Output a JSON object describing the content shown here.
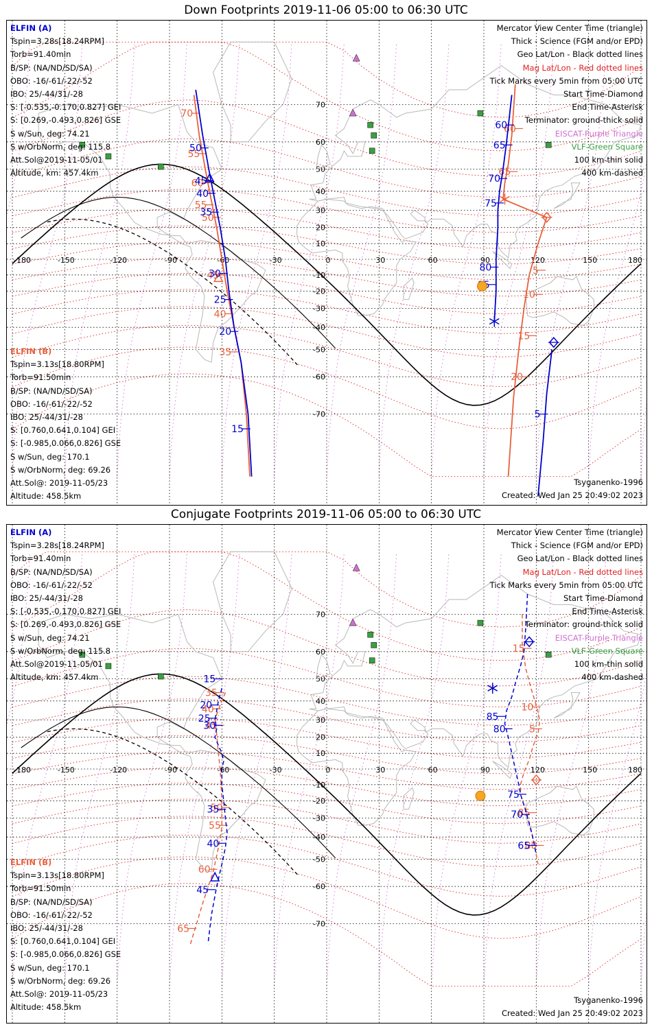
{
  "panels": [
    {
      "title": "Down Footprints 2019-11-06 05:00 to 06:30 UTC",
      "model": "Tsyganenko-1996",
      "created": "Created: Wed Jan 25 20:49:02 2023",
      "sat_a": {
        "name": "ELFIN (A)",
        "lines": [
          "Tspin=3.28s[18.24RPM]",
          "Torb=91.40min",
          "B/SP: (NA/ND/SD/SA)",
          "OBO: -16/-61/-22/-52",
          "IBO: 25/-44/31/-28",
          "S: [-0.535,-0.170,0.827] GEI",
          "S: [0.269,-0.493,0.826] GSE",
          "S w/Sun, deg: 74.21",
          "S w/OrbNorm, deg: 115.8",
          "Att.Sol@2019-11-05/01",
          "Altitude, km: 457.4km"
        ]
      },
      "sat_b": {
        "name": "ELFIN (B)",
        "lines": [
          "Tspin=3.13s[18.80RPM]",
          "Torb=91.50min",
          "B/SP: (NA/ND/SD/SA)",
          "OBO: -16/-61/-22/-52",
          "IBO: 25/-44/31/-28",
          "S: [0.760,0.641,0.104] GEI",
          "S: [-0.985,0.066,0.826] GSE",
          "S w/Sun, deg: 170.1",
          "S w/OrbNorm, deg: 69.26",
          "Att.Sol@: 2019-11-05/23",
          "Altitude: 458.5km"
        ]
      }
    },
    {
      "title": "Conjugate Footprints 2019-11-06 05:00 to 06:30 UTC",
      "model": "Tsyganenko-1996",
      "created": "Created: Wed Jan 25 20:49:02 2023",
      "sat_a": {
        "name": "ELFIN (A)",
        "lines": [
          "Tspin=3.28s[18.24RPM]",
          "Torb=91.40min",
          "B/SP: (NA/ND/SD/SA)",
          "OBO: -16/-61/-22/-52",
          "IBO: 25/-44/31/-28",
          "S: [-0.535,-0.170,0.827] GEI",
          "S: [0.269,-0.493,0.826] GSE",
          "S w/Sun, deg: 74.21",
          "S w/OrbNorm, deg: 115.8",
          "Att.Sol@2019-11-05/01",
          "Altitude, km: 457.4km"
        ]
      },
      "sat_b": {
        "name": "ELFIN (B)",
        "lines": [
          "Tspin=3.13s[18.80RPM]",
          "Torb=91.50min",
          "B/SP: (NA/ND/SD/SA)",
          "OBO: -16/-61/-22/-52",
          "IBO: 25/-44/31/-28",
          "S: [0.760,0.641,0.104] GEI",
          "S: [-0.985,0.066,0.826] GSE",
          "S w/Sun, deg: 170.1",
          "S w/OrbNorm, deg: 69.26",
          "Att.Sol@: 2019-11-05/23",
          "Altitude: 458.5km"
        ]
      }
    }
  ],
  "legend": [
    {
      "text": "Mercator View Center Time (triangle)",
      "color": "#000000"
    },
    {
      "text": "Thick - Science (FGM and/or EPD)",
      "color": "#000000"
    },
    {
      "text": "Geo Lat/Lon - Black dotted lines",
      "color": "#000000"
    },
    {
      "text": "Mag Lat/Lon - Red dotted lines",
      "color": "#e02020"
    },
    {
      "text": "Tick Marks every 5min from 05:00 UTC",
      "color": "#000000"
    },
    {
      "text": "Start Time-Diamond",
      "color": "#000000"
    },
    {
      "text": "End Time-Asterisk",
      "color": "#000000"
    },
    {
      "text": "Terminator: ground-thick solid",
      "color": "#000000"
    },
    {
      "text": "EISCAT-Purple Triangle",
      "color": "#d070d0"
    },
    {
      "text": "VLF-Green Square",
      "color": "#3aa040"
    },
    {
      "text": "100 km-thin solid",
      "color": "#000000"
    },
    {
      "text": "400 km-dashed",
      "color": "#000000"
    }
  ],
  "map": {
    "lon_ticks": [
      "-180",
      "-150",
      "-120",
      "-90",
      "-60",
      "-30",
      "0",
      "30",
      "60",
      "90",
      "120",
      "150",
      "180"
    ],
    "lat_ticks": [
      "70",
      "60",
      "50",
      "40",
      "30",
      "20",
      "10",
      "-10",
      "-20",
      "-30",
      "-40",
      "-50",
      "-60",
      "-70"
    ],
    "lon_values": [
      -180,
      -150,
      -120,
      -90,
      -60,
      -30,
      0,
      30,
      60,
      90,
      120,
      150,
      180
    ],
    "lat_values": [
      70,
      60,
      50,
      40,
      30,
      20,
      10,
      -10,
      -20,
      -30,
      -40,
      -50,
      -60,
      -70
    ]
  },
  "colors": {
    "elfin_a": "#0000cc",
    "elfin_b": "#e8603c",
    "mag_grid": "#e02020",
    "eiscat": "#d070d0",
    "vlf": "#3aa040",
    "sun": "#f5a623"
  },
  "down_tracks": {
    "a_west": {
      "points": [
        [
          -75,
          73
        ],
        [
          -71,
          62
        ],
        [
          -67,
          48
        ],
        [
          -64,
          35
        ],
        [
          -61,
          20
        ],
        [
          -58,
          0
        ],
        [
          -56,
          -20
        ],
        [
          -53,
          -40
        ],
        [
          -49,
          -55
        ],
        [
          -45,
          -70
        ],
        [
          -43,
          -80
        ]
      ],
      "ticks": [
        {
          "label": "50",
          "lon": -70,
          "lat": 58
        },
        {
          "label": "45",
          "lon": -67,
          "lat": 45
        },
        {
          "label": "40",
          "lon": -66,
          "lat": 39
        },
        {
          "label": "35",
          "lon": -64,
          "lat": 29
        },
        {
          "label": "30",
          "lon": -59,
          "lat": -9
        },
        {
          "label": "25",
          "lon": -56,
          "lat": -25
        },
        {
          "label": "20",
          "lon": -53,
          "lat": -42
        },
        {
          "label": "15",
          "lon": -46,
          "lat": -73
        }
      ],
      "triangle": {
        "lon": -67,
        "lat": 46
      }
    },
    "b_west": {
      "points": [
        [
          -76,
          72
        ],
        [
          -73,
          62
        ],
        [
          -69,
          48
        ],
        [
          -66,
          35
        ],
        [
          -63,
          20
        ],
        [
          -60,
          0
        ],
        [
          -57,
          -20
        ],
        [
          -53,
          -40
        ],
        [
          -49,
          -55
        ],
        [
          -46,
          -70
        ],
        [
          -44,
          -80
        ]
      ],
      "ticks": [
        {
          "label": "70",
          "lon": -75,
          "lat": 68
        },
        {
          "label": "55",
          "lon": -71,
          "lat": 56
        },
        {
          "label": "60",
          "lon": -69,
          "lat": 44
        },
        {
          "label": "55",
          "lon": -67,
          "lat": 33
        },
        {
          "label": "50",
          "lon": -63,
          "lat": 26
        },
        {
          "label": "45",
          "lon": -60,
          "lat": -10
        },
        {
          "label": "40",
          "lon": -56,
          "lat": -33
        },
        {
          "label": "35",
          "lon": -53,
          "lat": -51
        }
      ],
      "triangle": {
        "lon": -62,
        "lat": -12
      }
    },
    "a_east": {
      "points": [
        [
          106,
          72
        ],
        [
          103,
          60
        ],
        [
          101,
          50
        ],
        [
          99,
          40
        ],
        [
          98,
          30
        ],
        [
          98,
          20
        ],
        [
          97,
          0
        ],
        [
          97,
          -20
        ],
        [
          96,
          -37
        ]
      ],
      "ticks": [
        {
          "label": "60",
          "lon": 105,
          "lat": 65
        },
        {
          "label": "65",
          "lon": 104,
          "lat": 59
        },
        {
          "label": "70",
          "lon": 101,
          "lat": 46
        },
        {
          "label": "75",
          "lon": 99,
          "lat": 34
        },
        {
          "label": "80",
          "lon": 96,
          "lat": -5
        },
        {
          "label": "85",
          "lon": 95,
          "lat": -16
        }
      ],
      "asterisk": {
        "lon": 96,
        "lat": -37
      }
    },
    "a_east2": {
      "points": [
        [
          129,
          -50
        ],
        [
          126,
          -65
        ],
        [
          124,
          -75
        ],
        [
          121,
          -82
        ]
      ],
      "ticks": [
        {
          "label": "5",
          "lon": 124,
          "lat": -70
        }
      ],
      "diamond": {
        "lon": 130,
        "lat": -47
      }
    },
    "b_east": {
      "points": [
        [
          108,
          74
        ],
        [
          106,
          62
        ],
        [
          104,
          52
        ],
        [
          102,
          44
        ],
        [
          101,
          36
        ],
        [
          126,
          26
        ],
        [
          121,
          10
        ],
        [
          116,
          -10
        ],
        [
          113,
          -30
        ],
        [
          110,
          -50
        ],
        [
          107,
          -66
        ],
        [
          104,
          -80
        ]
      ],
      "ticks": [
        {
          "label": "60",
          "lon": 110,
          "lat": 64
        },
        {
          "label": "65",
          "lon": 107,
          "lat": 49
        },
        {
          "label": "5",
          "lon": 123,
          "lat": -7
        },
        {
          "label": "10",
          "lon": 121,
          "lat": -22
        },
        {
          "label": "15",
          "lon": 118,
          "lat": -44
        },
        {
          "label": "20",
          "lon": 114,
          "lat": -60
        }
      ],
      "diamond": {
        "lon": 126,
        "lat": 26
      },
      "asterisk": {
        "lon": 102,
        "lat": 36
      }
    }
  },
  "conj_tracks": {
    "a_west": {
      "points": [
        [
          -60,
          46
        ],
        [
          -62,
          40
        ],
        [
          -63,
          35
        ],
        [
          -64,
          30
        ],
        [
          -63,
          25
        ],
        [
          -64,
          20
        ],
        [
          -62,
          15
        ],
        [
          -60,
          10
        ],
        [
          -59,
          5
        ],
        [
          -60,
          0
        ],
        [
          -60,
          -5
        ],
        [
          -60,
          -10
        ],
        [
          -59,
          -20
        ],
        [
          -58,
          -30
        ],
        [
          -57,
          -38
        ],
        [
          -58,
          -45
        ],
        [
          -60,
          -52
        ],
        [
          -63,
          -60
        ],
        [
          -66,
          -68
        ],
        [
          -68,
          -74
        ]
      ],
      "ticks": [
        {
          "label": "15",
          "lon": -62,
          "lat": 50
        },
        {
          "label": "20",
          "lon": -64,
          "lat": 38
        },
        {
          "label": "25",
          "lon": -65,
          "lat": 31
        },
        {
          "label": "30",
          "lon": -62,
          "lat": 27
        },
        {
          "label": "35",
          "lon": -60,
          "lat": -25
        },
        {
          "label": "40",
          "lon": -60,
          "lat": -43
        },
        {
          "label": "45",
          "lon": -66,
          "lat": -61
        }
      ],
      "triangle": {
        "lon": -64,
        "lat": -57
      }
    },
    "b_west": {
      "points": [
        [
          -58,
          44
        ],
        [
          -61,
          38
        ],
        [
          -63,
          33
        ],
        [
          -64,
          28
        ],
        [
          -63,
          22
        ],
        [
          -62,
          10
        ],
        [
          -61,
          0
        ],
        [
          -60,
          -20
        ],
        [
          -60,
          -35
        ],
        [
          -62,
          -45
        ],
        [
          -65,
          -55
        ],
        [
          -71,
          -65
        ],
        [
          -78,
          -74
        ]
      ],
      "ticks": [
        {
          "label": "35",
          "lon": -61,
          "lat": 44
        },
        {
          "label": "40",
          "lon": -63,
          "lat": 36
        },
        {
          "label": "45",
          "lon": -61,
          "lat": 27
        },
        {
          "label": "50",
          "lon": -58,
          "lat": -24
        },
        {
          "label": "55",
          "lon": -59,
          "lat": -34
        },
        {
          "label": "60",
          "lon": -65,
          "lat": -54
        },
        {
          "label": "65",
          "lon": -77,
          "lat": -71
        }
      ]
    },
    "a_east": {
      "points": [
        [
          115,
          74
        ],
        [
          114,
          67
        ],
        [
          113,
          60
        ],
        [
          111,
          55
        ],
        [
          108,
          48
        ],
        [
          106,
          42
        ],
        [
          103,
          35
        ],
        [
          102,
          28
        ],
        [
          104,
          20
        ],
        [
          106,
          10
        ],
        [
          108,
          0
        ],
        [
          110,
          -10
        ],
        [
          111,
          -16
        ],
        [
          114,
          -26
        ],
        [
          118,
          -40
        ],
        [
          120,
          -48
        ]
      ],
      "ticks": [
        {
          "label": "85",
          "lon": 100,
          "lat": 32
        },
        {
          "label": "80",
          "lon": 104,
          "lat": 25
        },
        {
          "label": "75",
          "lon": 112,
          "lat": -16
        },
        {
          "label": "70",
          "lon": 114,
          "lat": -28
        },
        {
          "label": "65",
          "lon": 118,
          "lat": -44
        }
      ],
      "diamond": {
        "lon": 116,
        "lat": 63
      },
      "asterisk": {
        "lon": 95,
        "lat": 46
      }
    },
    "b_east": {
      "points": [
        [
          112,
          70
        ],
        [
          112,
          62
        ],
        [
          114,
          54
        ],
        [
          117,
          46
        ],
        [
          120,
          38
        ],
        [
          122,
          30
        ],
        [
          121,
          22
        ],
        [
          118,
          14
        ],
        [
          116,
          6
        ],
        [
          113,
          -2
        ],
        [
          111,
          -10
        ],
        [
          111,
          -16
        ],
        [
          114,
          -26
        ],
        [
          117,
          -36
        ],
        [
          119,
          -44
        ],
        [
          121,
          -52
        ]
      ],
      "ticks": [
        {
          "label": "15",
          "lon": 115,
          "lat": 61
        },
        {
          "label": "10",
          "lon": 120,
          "lat": 37
        },
        {
          "label": "5",
          "lon": 121,
          "lat": 25
        },
        {
          "label": "85",
          "lon": 118,
          "lat": -27
        },
        {
          "label": "80",
          "lon": 122,
          "lat": -44
        }
      ],
      "diamond": {
        "lon": 120,
        "lat": -7
      }
    }
  },
  "sun": [
    {
      "lon": 89,
      "lat": -17
    },
    {
      "lon": 88,
      "lat": -17
    }
  ],
  "eiscat": [
    {
      "lon": 17,
      "lat": 78
    },
    {
      "lon": 15,
      "lat": 68
    }
  ],
  "vlf": [
    {
      "lon": 25,
      "lat": 65
    },
    {
      "lon": 27,
      "lat": 62
    },
    {
      "lon": -140,
      "lat": 59
    },
    {
      "lon": -125,
      "lat": 55
    },
    {
      "lon": -95,
      "lat": 51
    },
    {
      "lon": 88,
      "lat": 68
    },
    {
      "lon": 127,
      "lat": 59
    },
    {
      "lon": 26,
      "lat": 57
    }
  ]
}
